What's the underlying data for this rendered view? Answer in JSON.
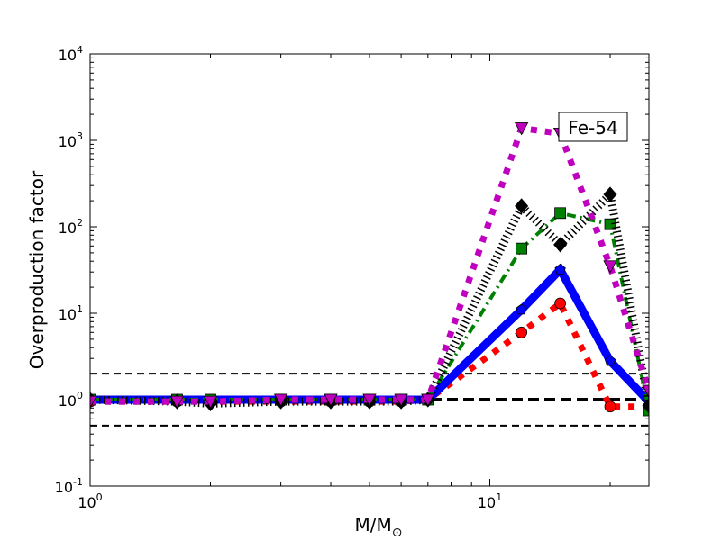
{
  "chart_data": {
    "type": "line",
    "title": "",
    "annotation": "Fe-54",
    "xlabel": "M/M",
    "xlabel_sub": "⊙",
    "ylabel": "Overproduction factor",
    "xscale": "log",
    "yscale": "log",
    "xlim": [
      1,
      25
    ],
    "ylim": [
      0.1,
      10000
    ],
    "x_ticks": [
      {
        "v": 1,
        "base": "10",
        "exp": "0"
      },
      {
        "v": 10,
        "base": "10",
        "exp": "1"
      }
    ],
    "y_ticks": [
      {
        "v": 0.1,
        "base": "10",
        "exp": "-1"
      },
      {
        "v": 1,
        "base": "10",
        "exp": "0"
      },
      {
        "v": 10,
        "base": "10",
        "exp": "1"
      },
      {
        "v": 100,
        "base": "10",
        "exp": "2"
      },
      {
        "v": 1000,
        "base": "10",
        "exp": "3"
      },
      {
        "v": 10000,
        "base": "10",
        "exp": "4"
      }
    ],
    "reference_lines": [
      {
        "y": 0.5,
        "style": "thin-dashed"
      },
      {
        "y": 1,
        "style": "thick-dashed"
      },
      {
        "y": 2,
        "style": "thin-dashed"
      }
    ],
    "x": [
      1,
      1.65,
      2,
      3,
      4,
      5,
      6,
      7,
      12,
      15,
      20,
      25
    ],
    "series": [
      {
        "name": "red-circles",
        "color": "#ff0000",
        "marker": "circle",
        "style": "dotted",
        "values": [
          0.95,
          0.95,
          0.95,
          0.95,
          0.95,
          0.95,
          0.95,
          1.0,
          6,
          13,
          0.83,
          0.83
        ]
      },
      {
        "name": "blue-pentagons",
        "color": "#0000ff",
        "marker": "pentagon",
        "style": "solid",
        "values": [
          1,
          1,
          1,
          1,
          1,
          1,
          1,
          1,
          11,
          32,
          2.8,
          0.95
        ]
      },
      {
        "name": "green-squares",
        "color": "#008000",
        "marker": "square",
        "style": "dashdot",
        "values": [
          1,
          1,
          1,
          1,
          1,
          1,
          1,
          1,
          56,
          144,
          107,
          0.75
        ]
      },
      {
        "name": "black-diamonds",
        "color": "#000000",
        "marker": "diamond",
        "style": "hatched",
        "values": [
          1,
          0.95,
          0.9,
          0.95,
          0.95,
          0.95,
          0.95,
          1,
          174,
          62,
          237,
          0.85
        ]
      },
      {
        "name": "magenta-triangles",
        "color": "#bf00bf",
        "marker": "triangle",
        "style": "dotted",
        "values": [
          0.95,
          0.95,
          0.95,
          1.0,
          1.0,
          1.0,
          1.0,
          1.0,
          1380,
          1200,
          35,
          1.27
        ]
      }
    ]
  }
}
